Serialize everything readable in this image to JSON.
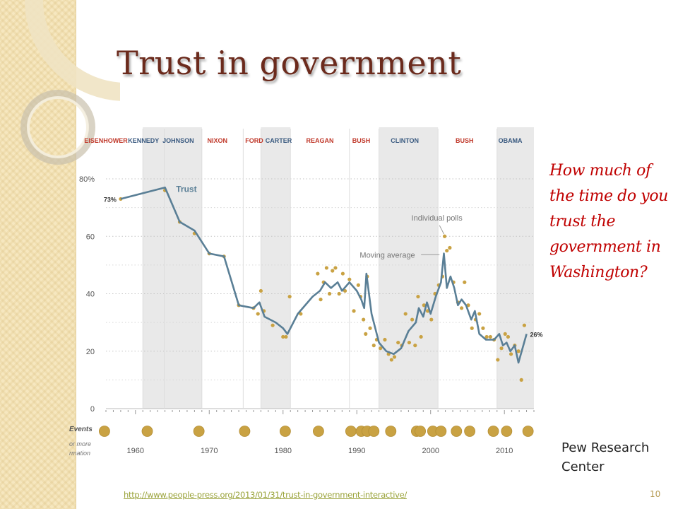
{
  "slide": {
    "title": "Trust in government",
    "question": "How much of the time do you trust the government in Washington?",
    "source": "Pew Research Center",
    "link": "http://www.people-press.org/2013/01/31/trust-in-government-interactive/",
    "slide_number": "10"
  },
  "chart_data": {
    "type": "line",
    "title": "",
    "xlabel": "",
    "ylabel": "",
    "xlim": [
      1956,
      2014
    ],
    "ylim": [
      0,
      80
    ],
    "x_ticks": [
      1960,
      1970,
      1980,
      1990,
      2000,
      2010
    ],
    "y_ticks": [
      {
        "value": 0,
        "label": "0"
      },
      {
        "value": 20,
        "label": "20"
      },
      {
        "value": 40,
        "label": "40"
      },
      {
        "value": 60,
        "label": "60"
      },
      {
        "value": 80,
        "label": "80%"
      }
    ],
    "grid": true,
    "colors": {
      "line": "#5a7f96",
      "dots": "#c9a243",
      "democrat_shade": "#e9e9e9",
      "democrat_label": "#3a5a80",
      "republican_label": "#c0392b",
      "events": "#c9a243"
    },
    "presidents": [
      {
        "name": "EISENHOWER",
        "party": "R",
        "start": 1953,
        "end": 1961
      },
      {
        "name": "KENNEDY",
        "party": "D",
        "start": 1961,
        "end": 1963.9
      },
      {
        "name": "JOHNSON",
        "party": "D",
        "start": 1963.9,
        "end": 1969
      },
      {
        "name": "NIXON",
        "party": "R",
        "start": 1969,
        "end": 1974.6
      },
      {
        "name": "FORD",
        "party": "R",
        "start": 1974.6,
        "end": 1977
      },
      {
        "name": "CARTER",
        "party": "D",
        "start": 1977,
        "end": 1981
      },
      {
        "name": "REAGAN",
        "party": "R",
        "start": 1981,
        "end": 1989
      },
      {
        "name": "BUSH",
        "party": "R",
        "start": 1989,
        "end": 1993
      },
      {
        "name": "CLINTON",
        "party": "D",
        "start": 1993,
        "end": 2001
      },
      {
        "name": "BUSH",
        "party": "R",
        "start": 2001,
        "end": 2009
      },
      {
        "name": "OBAMA",
        "party": "D",
        "start": 2009,
        "end": 2014
      }
    ],
    "series": [
      {
        "name": "Trust",
        "x": [
          1958,
          1964,
          1966,
          1968,
          1970,
          1972,
          1974,
          1976,
          1976.8,
          1977.5,
          1979,
          1980,
          1980.6,
          1982,
          1984,
          1985,
          1985.7,
          1986.5,
          1987.4,
          1988,
          1989,
          1990,
          1990.6,
          1991,
          1991.3,
          1992,
          1993,
          1994,
          1995,
          1996,
          1997,
          1998,
          1998.4,
          1999,
          1999.5,
          2000,
          2000.7,
          2001.4,
          2001.8,
          2002.2,
          2002.7,
          2003.2,
          2003.7,
          2004.2,
          2004.8,
          2005.5,
          2006,
          2006.6,
          2007.5,
          2008.6,
          2009.3,
          2009.8,
          2010.3,
          2010.8,
          2011.4,
          2011.9,
          2013
        ],
        "y": [
          73,
          77,
          65,
          62,
          54,
          53,
          36,
          35,
          37,
          32,
          30,
          28,
          26,
          33,
          39,
          41,
          44,
          42,
          44,
          41,
          44,
          41,
          38,
          35,
          47,
          33,
          23,
          20,
          19,
          21,
          27,
          30,
          35,
          32,
          37,
          33,
          39,
          44,
          54,
          42,
          46,
          42,
          36,
          38,
          36,
          31,
          34,
          26,
          24,
          24,
          26,
          22,
          23,
          20,
          22,
          16,
          26
        ],
        "end_labels": {
          "first": "73%",
          "last": "26%"
        }
      },
      {
        "name": "Individual polls",
        "x": [
          1958,
          1964,
          1966,
          1968,
          1970,
          1972,
          1974,
          1976,
          1976.6,
          1977,
          1977.4,
          1978.6,
          1980,
          1980.4,
          1980.9,
          1982.4,
          1984.7,
          1985.1,
          1985.5,
          1985.9,
          1986.3,
          1986.7,
          1987.1,
          1987.6,
          1988.1,
          1988.4,
          1989,
          1989.6,
          1990.2,
          1990.5,
          1990.9,
          1991.2,
          1991.4,
          1991.8,
          1992.3,
          1992.7,
          1993.2,
          1993.8,
          1994.3,
          1994.7,
          1995.1,
          1995.6,
          1996.1,
          1996.6,
          1997.1,
          1997.5,
          1997.9,
          1998.3,
          1998.7,
          1999.1,
          1999.6,
          2000.1,
          2000.6,
          2001.1,
          2001.6,
          2001.9,
          2002.2,
          2002.6,
          2003.1,
          2003.7,
          2004.2,
          2004.6,
          2005.1,
          2005.6,
          2006.1,
          2006.6,
          2007.1,
          2007.6,
          2008.1,
          2008.6,
          2009.1,
          2009.6,
          2010.1,
          2010.5,
          2010.9,
          2011.4,
          2011.9,
          2012.3,
          2012.7
        ],
        "y": [
          73,
          76,
          65,
          61,
          54,
          53,
          36,
          35,
          33,
          41,
          34,
          29,
          25,
          25,
          39,
          33,
          47,
          38,
          44,
          49,
          40,
          48,
          49,
          40,
          47,
          41,
          45,
          34,
          43,
          39,
          31,
          26,
          46,
          28,
          22,
          24,
          21,
          24,
          19,
          17,
          18,
          23,
          22,
          33,
          23,
          31,
          22,
          39,
          25,
          36,
          34,
          31,
          40,
          43,
          46,
          60,
          55,
          56,
          44,
          37,
          35,
          44,
          36,
          28,
          31,
          33,
          28,
          25,
          25,
          24,
          17,
          21,
          26,
          25,
          19,
          22,
          20,
          10,
          29
        ],
        "labels": [
          "Individual polls",
          "Moving average"
        ]
      }
    ],
    "events_label": [
      "Events",
      "or more",
      "rmation"
    ],
    "events": [
      1955.8,
      1961.6,
      1968.6,
      1974.8,
      1980.3,
      1984.8,
      1989.2,
      1990.6,
      1991.4,
      1992.3,
      1994.6,
      1998.1,
      1998.6,
      2000.3,
      2001.4,
      2003.5,
      2005.3,
      2008.5,
      2010.3,
      2013.2
    ]
  }
}
